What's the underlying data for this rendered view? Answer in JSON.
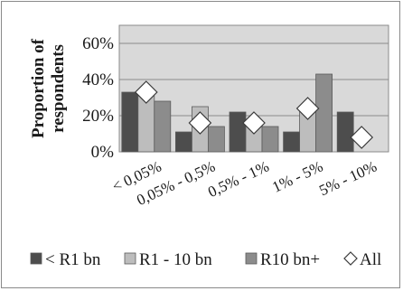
{
  "chart_data": {
    "type": "bar",
    "ylabel": "Proportion of respondents",
    "yticks": [
      "0%",
      "20%",
      "40%",
      "60%"
    ],
    "ylim": [
      0,
      0.7
    ],
    "grid": true,
    "legend_position": "bottom",
    "categories": [
      "< 0,05%",
      "0,05% - 0,5%",
      "0,5% - 1%",
      "1% - 5%",
      "5% - 10%"
    ],
    "series": [
      {
        "name": "< R1 bn",
        "kind": "bar",
        "color": "#4d4d4d",
        "values": [
          0.33,
          0.11,
          0.22,
          0.11,
          0.22
        ]
      },
      {
        "name": "R1 - 10 bn",
        "kind": "bar",
        "color": "#bdbdbd",
        "values": [
          0.31,
          0.25,
          0.17,
          0.25,
          null
        ]
      },
      {
        "name": "R10 bn+",
        "kind": "bar",
        "color": "#8c8c8c",
        "values": [
          0.28,
          0.14,
          0.14,
          0.43,
          null
        ]
      },
      {
        "name": "All",
        "kind": "marker",
        "marker": "diamond",
        "color": "#ffffff",
        "values": [
          0.33,
          0.16,
          0.16,
          0.24,
          0.08
        ]
      }
    ]
  }
}
